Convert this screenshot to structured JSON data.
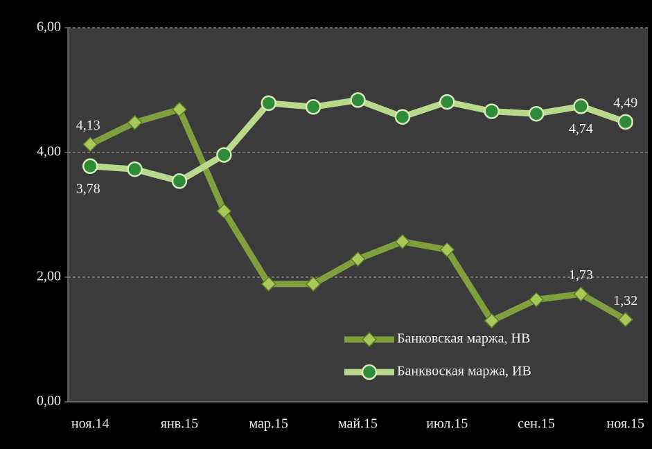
{
  "chart_data": {
    "type": "line",
    "categories": [
      "ноя.14",
      null,
      "янв.15",
      null,
      "мар.15",
      null,
      "май.15",
      null,
      "июл.15",
      null,
      "сен.15",
      null,
      "ноя.15"
    ],
    "series": [
      {
        "name": "Банковская маржа, НВ",
        "color": "#7fa03c",
        "marker": "diamond",
        "values": [
          4.13,
          4.48,
          4.69,
          3.06,
          1.89,
          1.89,
          2.29,
          2.57,
          2.44,
          1.3,
          1.64,
          1.73,
          1.32
        ],
        "value_labels": [
          "4,13",
          null,
          null,
          null,
          null,
          null,
          null,
          null,
          null,
          null,
          null,
          "1,73",
          "1,32"
        ]
      },
      {
        "name": "Банквоская маржа, ИВ",
        "color": "#b9d98c",
        "marker": "circle",
        "values": [
          3.78,
          3.73,
          3.54,
          3.96,
          4.79,
          4.73,
          4.84,
          4.57,
          4.81,
          4.66,
          4.62,
          4.74,
          4.49
        ],
        "value_labels": [
          "3,78",
          null,
          null,
          null,
          null,
          null,
          null,
          null,
          null,
          null,
          null,
          "4,74",
          "4,49"
        ]
      }
    ],
    "ylim": [
      0,
      6
    ],
    "yticks": [
      {
        "value": 0,
        "label": "0,00"
      },
      {
        "value": 2,
        "label": "2,00"
      },
      {
        "value": 4,
        "label": "4,00"
      },
      {
        "value": 6,
        "label": "6,00"
      }
    ],
    "grid": true,
    "legend": "lower right"
  }
}
